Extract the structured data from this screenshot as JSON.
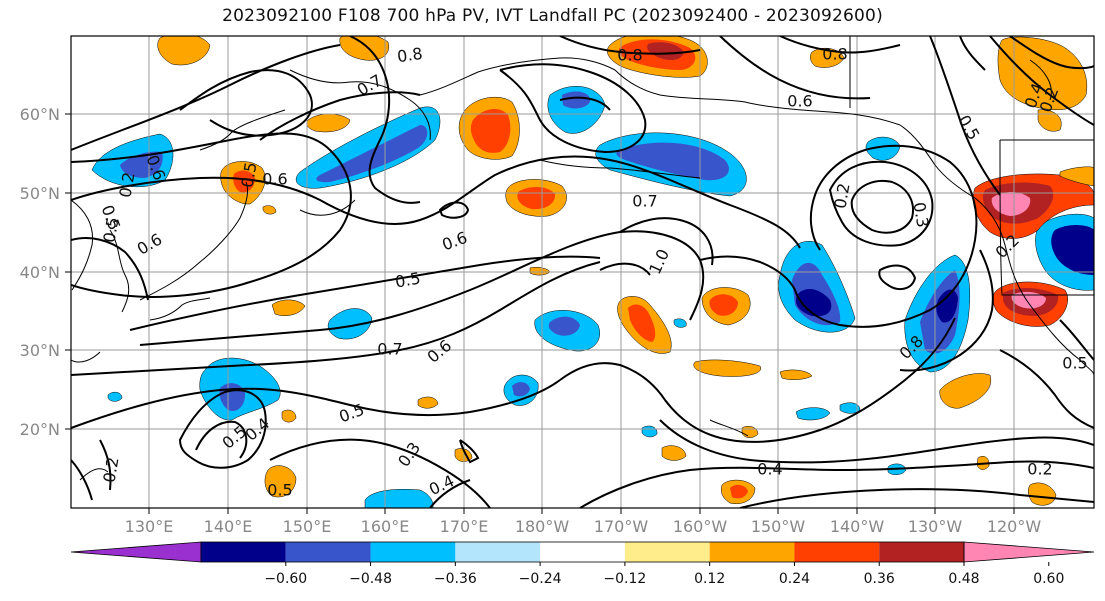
{
  "title": "2023092100 F108 700 hPa PV, IVT Landfall PC (2023092400 - 2023092600)",
  "lat_ticks": [
    "60°N",
    "50°N",
    "40°N",
    "30°N",
    "20°N"
  ],
  "lon_ticks": [
    "130°E",
    "140°E",
    "150°E",
    "160°E",
    "170°E",
    "180°W",
    "170°W",
    "160°W",
    "150°W",
    "140°W",
    "130°W",
    "120°W"
  ],
  "colorbar": {
    "colors": [
      "#9b30d0",
      "#00008b",
      "#3955cc",
      "#00bfff",
      "#b3e5fc",
      "#ffffff",
      "#ffec8b",
      "#ffa500",
      "#ff4000",
      "#b22222",
      "#ff85b3"
    ],
    "tick_labels": [
      "−0.60",
      "−0.48",
      "−0.36",
      "−0.24",
      "−0.12",
      "0.12",
      "0.24",
      "0.36",
      "0.48",
      "0.60"
    ]
  },
  "contour_labels": [
    "0.8",
    "0.7",
    "0.6",
    "0.5",
    "0.6",
    "0.6",
    "0.7",
    "0.6",
    "0.5",
    "0.8",
    "0.8",
    "0.6",
    "0.5",
    "0.7",
    "0.6",
    "0.5",
    "0.5",
    "0.4",
    "0.3",
    "0.4",
    "0.5",
    "0.4",
    "0.2",
    "0.2",
    "0.2",
    "0.3",
    "0.8",
    "1.0",
    "0.5",
    "0.4",
    "0.2",
    "0.2",
    "0.5",
    "0.2",
    "0.5"
  ],
  "colors": {
    "contour": "#000000",
    "grid": "#9a9a9a",
    "coast": "#000000"
  }
}
